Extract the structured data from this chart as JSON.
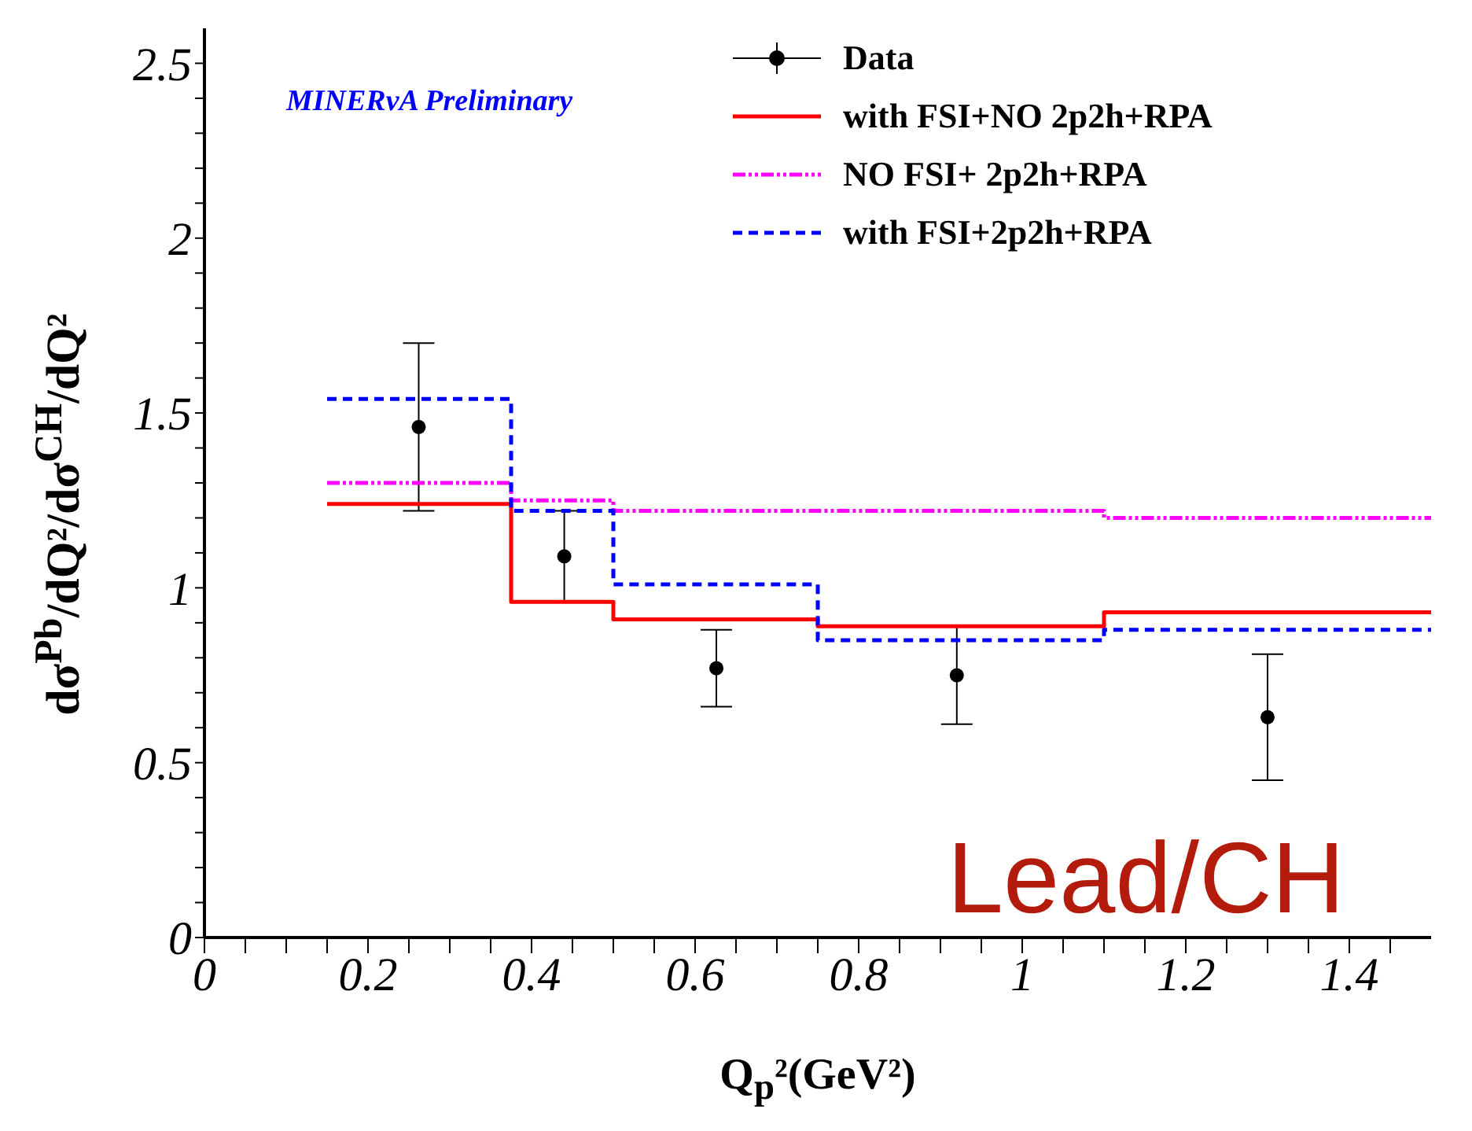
{
  "chart_data": {
    "type": "step",
    "xlabel": "Q$_{p}$²(GeV²)",
    "ylabel": "dσ$^{Pb}$/dQ²/dσ$^{CH}$/dQ²",
    "annotations": [
      "MINERνA Preliminary",
      "Lead/CH"
    ],
    "xlim": [
      0,
      1.5
    ],
    "xticks": [
      0,
      {
        "value": 0.05,
        "label": null
      },
      {
        "value": 0.1,
        "label": null
      },
      {
        "value": 0.15,
        "label": null
      },
      0.2,
      {
        "value": 0.25,
        "label": null
      },
      {
        "value": 0.3,
        "label": null
      },
      {
        "value": 0.35,
        "label": null
      },
      0.4,
      {
        "value": 0.45,
        "label": null
      },
      {
        "value": 0.5,
        "label": null
      },
      {
        "value": 0.55,
        "label": null
      },
      0.6,
      {
        "value": 0.65,
        "label": null
      },
      {
        "value": 0.7,
        "label": null
      },
      {
        "value": 0.75,
        "label": null
      },
      0.8,
      {
        "value": 0.85,
        "label": null
      },
      {
        "value": 0.9,
        "label": null
      },
      {
        "value": 0.95,
        "label": null
      },
      1,
      {
        "value": 1.05,
        "label": null
      },
      {
        "value": 1.1,
        "label": null
      },
      {
        "value": 1.15,
        "label": null
      },
      1.2,
      {
        "value": 1.25,
        "label": null
      },
      {
        "value": 1.3,
        "label": null
      },
      {
        "value": 1.35,
        "label": null
      },
      1.4,
      {
        "value": 1.45,
        "label": null
      }
    ],
    "ylim": [
      0,
      2.6
    ],
    "yticks": [
      0,
      {
        "value": 0.1,
        "label": null
      },
      {
        "value": 0.2,
        "label": null
      },
      {
        "value": 0.3,
        "label": null
      },
      {
        "value": 0.4,
        "label": null
      },
      0.5,
      {
        "value": 0.6,
        "label": null
      },
      {
        "value": 0.7,
        "label": null
      },
      {
        "value": 0.8,
        "label": null
      },
      {
        "value": 0.9,
        "label": null
      },
      1,
      {
        "value": 1.1,
        "label": null
      },
      {
        "value": 1.2,
        "label": null
      },
      {
        "value": 1.3,
        "label": null
      },
      {
        "value": 1.4,
        "label": null
      },
      1.5,
      {
        "value": 1.6,
        "label": null
      },
      {
        "value": 1.7,
        "label": null
      },
      {
        "value": 1.8,
        "label": null
      },
      {
        "value": 1.9,
        "label": null
      },
      2,
      {
        "value": 2.1,
        "label": null
      },
      {
        "value": 2.2,
        "label": null
      },
      {
        "value": 2.3,
        "label": null
      },
      {
        "value": 2.4,
        "label": null
      },
      2.5
    ],
    "grid": false,
    "legend": "top right",
    "series": [
      {
        "name": "Data",
        "type": "scatter",
        "color": "#000000",
        "marker": "circle",
        "x": [
          0.262,
          0.44,
          0.626,
          0.92,
          1.3
        ],
        "values": [
          1.46,
          1.09,
          0.77,
          0.75,
          0.63
        ],
        "errors": [
          0.24,
          0.13,
          0.11,
          0.14,
          0.18
        ]
      },
      {
        "name": "with FSI+NO 2p2h+RPA",
        "color": "#ff0000",
        "line_style": "solid",
        "x": [
          0.15,
          0.375,
          0.5,
          0.75,
          1.1,
          1.5
        ],
        "values": [
          1.24,
          0.96,
          0.91,
          0.89,
          0.93,
          0.93
        ]
      },
      {
        "name": "NO FSI+ 2p2h+RPA",
        "color": "#ff00ff",
        "line_style": "dotted",
        "x": [
          0.15,
          0.375,
          0.5,
          0.75,
          1.1,
          1.5
        ],
        "values": [
          1.3,
          1.25,
          1.22,
          1.22,
          1.2,
          1.2
        ]
      },
      {
        "name": "with FSI+2p2h+RPA",
        "color": "#0000ff",
        "line_style": "dashed",
        "x": [
          0.15,
          0.375,
          0.5,
          0.75,
          1.1,
          1.5
        ],
        "values": [
          1.54,
          1.22,
          1.01,
          0.85,
          0.88,
          0.88
        ]
      }
    ]
  }
}
